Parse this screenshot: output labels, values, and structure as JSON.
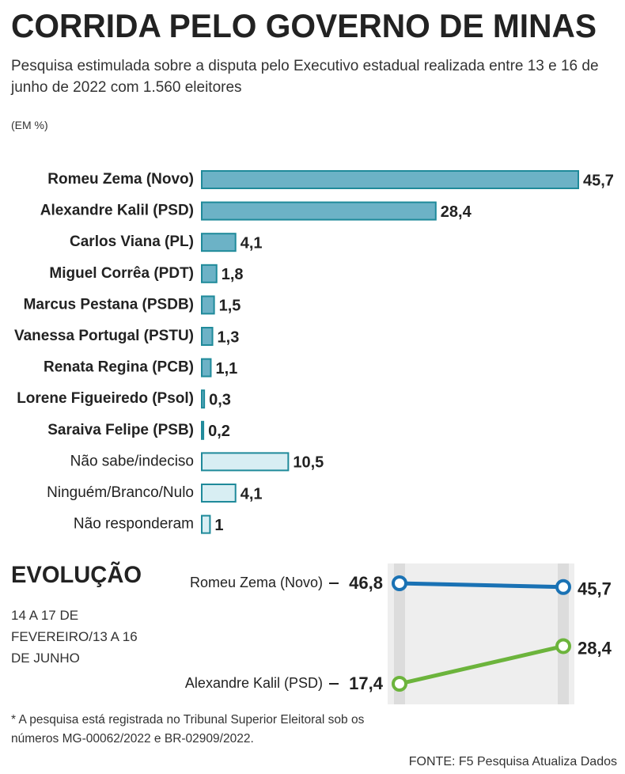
{
  "header": {
    "title": "CORRIDA PELO GOVERNO DE MINAS",
    "subtitle": "Pesquisa estimulada sobre a disputa pelo Executivo estadual realizada entre 13 e 16 de junho de 2022 com 1.560 eleitores",
    "unit": "(EM %)"
  },
  "chart_data": [
    {
      "type": "bar",
      "orientation": "horizontal",
      "categories": [
        "Romeu Zema (Novo)",
        "Alexandre Kalil (PSD)",
        "Carlos Viana (PL)",
        "Miguel Corrêa (PDT)",
        "Marcus Pestana (PSDB)",
        "Vanessa Portugal (PSTU)",
        "Renata Regina (PCB)",
        "Lorene Figueiredo (Psol)",
        "Saraiva Felipe (PSB)",
        "Não sabe/indeciso",
        "Ninguém/Branco/Nulo",
        "Não responderam"
      ],
      "values": [
        45.7,
        28.4,
        4.1,
        1.8,
        1.5,
        1.3,
        1.1,
        0.3,
        0.2,
        10.5,
        4.1,
        1
      ],
      "value_labels": [
        "45,7",
        "28,4",
        "4,1",
        "1,8",
        "1,5",
        "1,3",
        "1,1",
        "0,3",
        "0,2",
        "10,5",
        "4,1",
        "1"
      ],
      "colors": [
        "#6cb2c6",
        "#6cb2c6",
        "#6cb2c6",
        "#6cb2c6",
        "#6cb2c6",
        "#6cb2c6",
        "#6cb2c6",
        "#6cb2c6",
        "#6cb2c6",
        "#d8eef3",
        "#d8eef3",
        "#d8eef3"
      ]
    },
    {
      "type": "line",
      "title": "EVOLUÇÃO",
      "subtitle": "14 A 17 DE FEVEREIRO/13 A 16 DE JUNHO",
      "series": [
        {
          "name": "Romeu Zema (Novo)",
          "color": "#1a72b4",
          "values": [
            46.8,
            45.7
          ],
          "value_labels": [
            "46,8",
            "45,7"
          ]
        },
        {
          "name": "Alexandre Kalil (PSD)",
          "color": "#6cb43c",
          "values": [
            17.4,
            28.4
          ],
          "value_labels": [
            "17,4",
            "28,4"
          ]
        }
      ]
    }
  ],
  "footer": {
    "note": "* A pesquisa está registrada no Tribunal Superior Eleitoral sob os números MG-00062/2022 e BR-02909/2022.",
    "source": "FONTE: F5 Pesquisa Atualiza Dados"
  }
}
